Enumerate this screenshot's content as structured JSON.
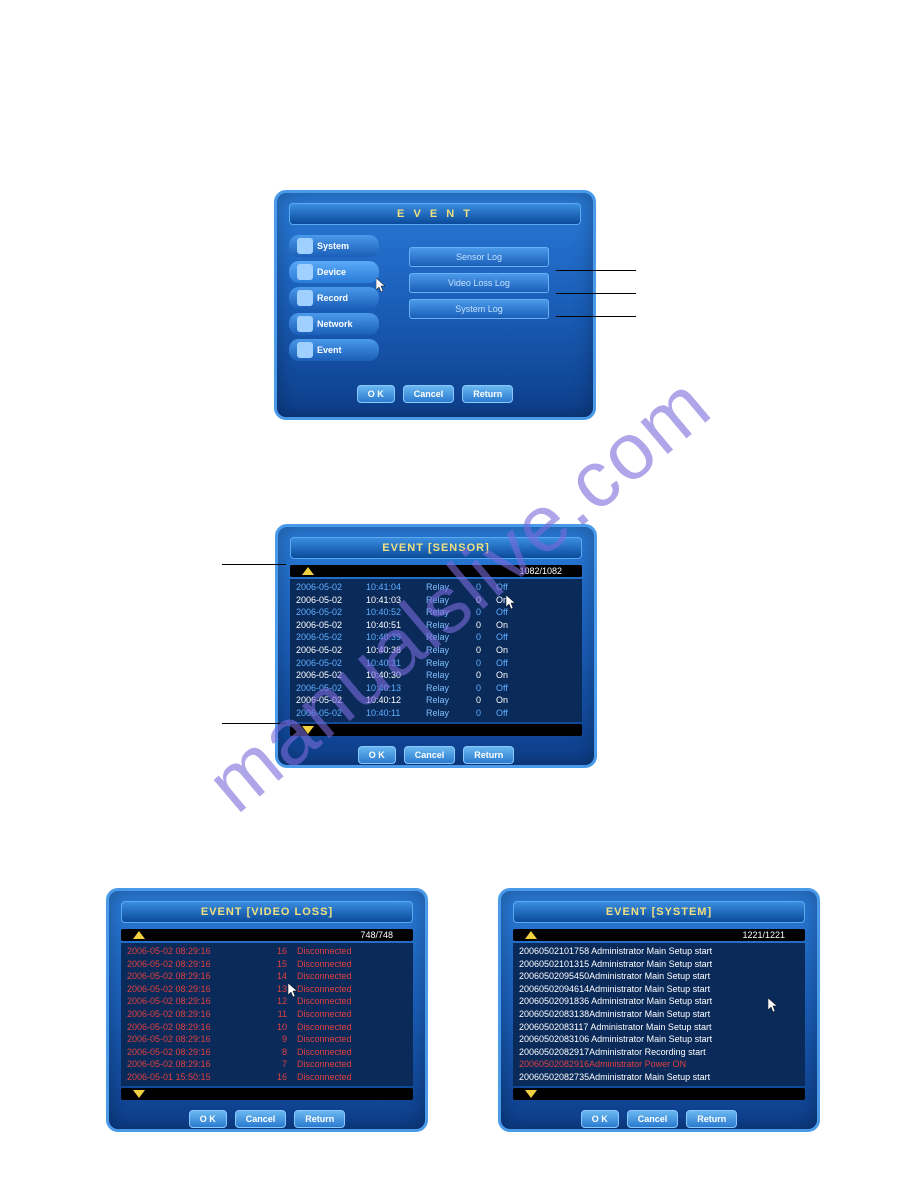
{
  "watermark": "manualslive.com",
  "panel1": {
    "title": "E V E N T",
    "menu": [
      "System",
      "Device",
      "Record",
      "Network",
      "Event"
    ],
    "logs": [
      "Sensor Log",
      "Video Loss Log",
      "System Log"
    ],
    "buttons": [
      "O K",
      "Cancel",
      "Return"
    ]
  },
  "panel2": {
    "title": "EVENT [SENSOR]",
    "page": "1082/1082",
    "rows": [
      {
        "d": "2006-05-02",
        "t": "10:41:04",
        "r": "Relay",
        "n": "0",
        "s": "Off",
        "cls": "blue"
      },
      {
        "d": "2006-05-02",
        "t": "10:41:03",
        "r": "Relay",
        "n": "0",
        "s": "On",
        "cls": "white"
      },
      {
        "d": "2006-05-02",
        "t": "10:40:52",
        "r": "Relay",
        "n": "0",
        "s": "Off",
        "cls": "blue"
      },
      {
        "d": "2006-05-02",
        "t": "10:40:51",
        "r": "Relay",
        "n": "0",
        "s": "On",
        "cls": "white"
      },
      {
        "d": "2006-05-02",
        "t": "10:40:39",
        "r": "Relay",
        "n": "0",
        "s": "Off",
        "cls": "blue"
      },
      {
        "d": "2006-05-02",
        "t": "10:40:38",
        "r": "Relay",
        "n": "0",
        "s": "On",
        "cls": "white"
      },
      {
        "d": "2006-05-02",
        "t": "10:40:31",
        "r": "Relay",
        "n": "0",
        "s": "Off",
        "cls": "blue"
      },
      {
        "d": "2006-05-02",
        "t": "10:40:30",
        "r": "Relay",
        "n": "0",
        "s": "On",
        "cls": "white"
      },
      {
        "d": "2006-05-02",
        "t": "10:40:13",
        "r": "Relay",
        "n": "0",
        "s": "Off",
        "cls": "blue"
      },
      {
        "d": "2006-05-02",
        "t": "10:40:12",
        "r": "Relay",
        "n": "0",
        "s": "On",
        "cls": "white"
      },
      {
        "d": "2006-05-02",
        "t": "10:40:11",
        "r": "Relay",
        "n": "0",
        "s": "Off",
        "cls": "blue"
      }
    ],
    "buttons": [
      "O K",
      "Cancel",
      "Return"
    ]
  },
  "panel3": {
    "title": "EVENT [VIDEO LOSS]",
    "page": "748/748",
    "rows": [
      {
        "d": "2006-05-02 08:29:16",
        "n": "16",
        "s": "Disconnected"
      },
      {
        "d": "2006-05-02 08:29:16",
        "n": "15",
        "s": "Disconnected"
      },
      {
        "d": "2006-05-02 08:29:16",
        "n": "14",
        "s": "Disconnected"
      },
      {
        "d": "2006-05-02 08:29:16",
        "n": "13",
        "s": "Disconnected"
      },
      {
        "d": "2006-05-02 08:29:16",
        "n": "12",
        "s": "Disconnected"
      },
      {
        "d": "2006-05-02 08:29:16",
        "n": "11",
        "s": "Disconnected"
      },
      {
        "d": "2006-05-02 08:29:16",
        "n": "10",
        "s": "Disconnected"
      },
      {
        "d": "2006-05-02 08:29:16",
        "n": "9",
        "s": "Disconnected"
      },
      {
        "d": "2006-05-02 08:29:16",
        "n": "8",
        "s": "Disconnected"
      },
      {
        "d": "2006-05-02 08:29:16",
        "n": "7",
        "s": "Disconnected"
      },
      {
        "d": "2006-05-01 15:50:15",
        "n": "16",
        "s": "Disconnected"
      }
    ],
    "buttons": [
      "O K",
      "Cancel",
      "Return"
    ]
  },
  "panel4": {
    "title": "EVENT [SYSTEM]",
    "page": "1221/1221",
    "rows": [
      {
        "t": "20060502101758 Administrator Main Setup start",
        "cls": ""
      },
      {
        "t": "20060502101315 Administrator Main Setup start",
        "cls": ""
      },
      {
        "t": "20060502095450Administrator Main Setup start",
        "cls": ""
      },
      {
        "t": "20060502094614Administrator Main Setup start",
        "cls": ""
      },
      {
        "t": "20060502091836 Administrator Main Setup start",
        "cls": ""
      },
      {
        "t": "20060502083138Administrator Main Setup start",
        "cls": ""
      },
      {
        "t": "20060502083117 Administrator Main Setup start",
        "cls": ""
      },
      {
        "t": "20060502083106 Administrator Main Setup start",
        "cls": ""
      },
      {
        "t": "20060502082917Administrator Recording start",
        "cls": ""
      },
      {
        "t": "20060502082916Administrator Power ON",
        "cls": "red"
      },
      {
        "t": "20060502082735Administrator Main Setup start",
        "cls": ""
      }
    ],
    "buttons": [
      "O K",
      "Cancel",
      "Return"
    ]
  }
}
